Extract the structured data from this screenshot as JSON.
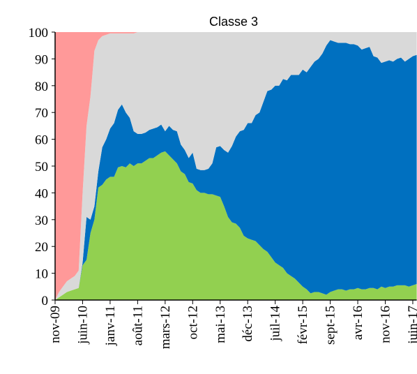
{
  "chart_data": {
    "type": "stacked_area",
    "title": "Classe 3",
    "categories": [
      "nov-09",
      null,
      null,
      null,
      null,
      null,
      null,
      "juin-10",
      null,
      null,
      null,
      null,
      null,
      null,
      "janv-11",
      null,
      null,
      null,
      null,
      null,
      null,
      "août-11",
      null,
      null,
      null,
      null,
      null,
      null,
      "mars-12",
      null,
      null,
      null,
      null,
      null,
      null,
      "oct-12",
      null,
      null,
      null,
      null,
      null,
      null,
      "mai-13",
      null,
      null,
      null,
      null,
      null,
      null,
      "déc-13",
      null,
      null,
      null,
      null,
      null,
      null,
      "juil-14",
      null,
      null,
      null,
      null,
      null,
      null,
      "févr-15",
      null,
      null,
      null,
      null,
      null,
      null,
      "sept-15",
      null,
      null,
      null,
      null,
      null,
      null,
      "avr-16",
      null,
      null,
      null,
      null,
      null,
      null,
      "nov-16",
      null,
      null,
      null,
      null,
      null,
      null,
      "juin-17",
      null
    ],
    "series": [
      {
        "color": "#92d050",
        "values": [
          0,
          1,
          2,
          3,
          3.5,
          4,
          4.5,
          13,
          15,
          25,
          30,
          42,
          43,
          45,
          46,
          46,
          49.5,
          50,
          49.5,
          51,
          50,
          51,
          51,
          52,
          53,
          53,
          54,
          55,
          55.5,
          54,
          52.5,
          51,
          48,
          47,
          44,
          43.5,
          41,
          40,
          40,
          39.5,
          39.5,
          39,
          38.5,
          35,
          31,
          29,
          28.5,
          27,
          24,
          23,
          22.5,
          22,
          20.5,
          19,
          18,
          16,
          14,
          13,
          12,
          10,
          9,
          8,
          6.5,
          5,
          4,
          2.5,
          3,
          3,
          2.5,
          2,
          3,
          3.5,
          4,
          4,
          3.5,
          4,
          4,
          4.5,
          4,
          4,
          4.5,
          4.5,
          4,
          5,
          4.5,
          5,
          5,
          5.5,
          5.5,
          5.5,
          5,
          5.5,
          6
        ]
      },
      {
        "color": "#0070c0",
        "values": [
          0,
          0,
          0,
          0,
          0,
          0,
          0,
          1,
          16,
          5,
          5,
          6,
          14,
          15,
          18,
          20,
          21.5,
          23,
          20.5,
          17,
          13,
          11,
          11,
          10.5,
          10.5,
          11,
          10.5,
          10.5,
          7.5,
          11,
          11,
          12,
          10,
          9,
          9,
          11.5,
          8,
          8.5,
          8.5,
          9.5,
          11.5,
          18,
          19,
          21,
          24,
          28.5,
          32.5,
          36,
          39.5,
          43,
          43.5,
          47,
          49.5,
          55,
          60,
          62.5,
          66,
          67,
          70.5,
          72,
          75,
          76,
          77.5,
          81,
          81,
          84.5,
          86,
          87,
          89.5,
          93,
          94,
          93,
          92,
          92,
          92.5,
          91.5,
          91.5,
          90.5,
          89.5,
          90,
          90,
          86.5,
          86.5,
          83.5,
          84.5,
          84.5,
          84,
          84.5,
          85,
          83.5,
          85,
          85.5,
          85.5
        ]
      },
      {
        "color": "#d9d9d9",
        "values": [
          0,
          2,
          3,
          4,
          4.5,
          5,
          6.5,
          26,
          34,
          46,
          58,
          49,
          41.5,
          39,
          35.5,
          33.5,
          28.5,
          26.5,
          29.5,
          31.5,
          36.5,
          38,
          38,
          37.5,
          36.5,
          36,
          35.5,
          34.5,
          37,
          35,
          36.5,
          37,
          42,
          44,
          47,
          45,
          51,
          51.5,
          51.5,
          51,
          49,
          43,
          42.5,
          44,
          45,
          42.5,
          39,
          37,
          36.5,
          34,
          34,
          31,
          30,
          26,
          22,
          21.5,
          20,
          20,
          17.5,
          18,
          16,
          16,
          16,
          14,
          15,
          13,
          11,
          10,
          8,
          5,
          3,
          3.5,
          4,
          4,
          4,
          4.5,
          4.5,
          5,
          6.5,
          6,
          5.5,
          9,
          9.5,
          11.5,
          11,
          10.5,
          11,
          10,
          9.5,
          11,
          10,
          9,
          8.5
        ]
      },
      {
        "color": "#ff9999",
        "values": [
          100,
          97,
          95,
          93,
          92,
          91,
          89,
          60,
          35,
          24,
          7,
          3,
          1.5,
          1,
          0.5,
          0.5,
          0.5,
          0.5,
          0.5,
          0.5,
          0.5,
          0,
          0,
          0,
          0,
          0,
          0,
          0,
          0,
          0,
          0,
          0,
          0,
          0,
          0,
          0,
          0,
          0,
          0,
          0,
          0,
          0,
          0,
          0,
          0,
          0,
          0,
          0,
          0,
          0,
          0,
          0,
          0,
          0,
          0,
          0,
          0,
          0,
          0,
          0,
          0,
          0,
          0,
          0,
          0,
          0,
          0,
          0,
          0,
          0,
          0,
          0,
          0,
          0,
          0,
          0,
          0,
          0,
          0,
          0,
          0,
          0,
          0,
          0,
          0,
          0,
          0,
          0,
          0,
          0,
          0,
          0,
          0
        ]
      }
    ],
    "ylim": [
      0,
      100
    ],
    "yticks": [
      0,
      10,
      20,
      30,
      40,
      50,
      60,
      70,
      80,
      90,
      100
    ]
  }
}
